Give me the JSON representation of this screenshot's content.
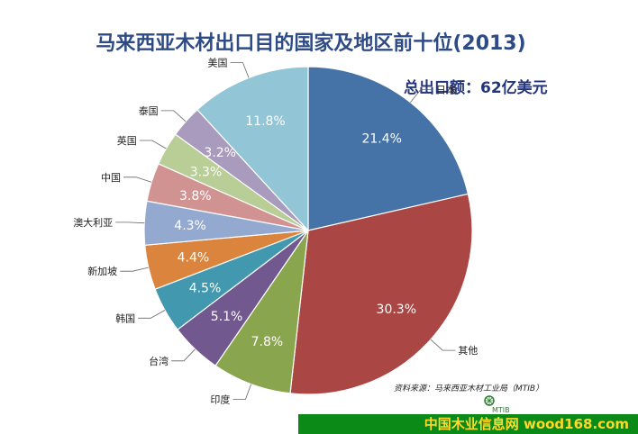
{
  "header": {
    "title": "马来西亚木材出口目的国家及地区前十位(2013)",
    "total": "总出口额：62亿美元"
  },
  "chart_data": {
    "type": "pie",
    "title": "马来西亚木材出口目的国家及地区前十位(2013)",
    "start_angle_deg": 0,
    "direction": "clockwise",
    "slices": [
      {
        "label": "日本",
        "value": 21.4,
        "value_label": "21.4%",
        "color": "#4572a7"
      },
      {
        "label": "其他",
        "value": 30.3,
        "value_label": "30.3%",
        "color": "#aa4643"
      },
      {
        "label": "印度",
        "value": 7.8,
        "value_label": "7.8%",
        "color": "#89a54e"
      },
      {
        "label": "台湾",
        "value": 5.1,
        "value_label": "5.1%",
        "color": "#71588f"
      },
      {
        "label": "韩国",
        "value": 4.5,
        "value_label": "4.5%",
        "color": "#4198af"
      },
      {
        "label": "新加坡",
        "value": 4.4,
        "value_label": "4.4%",
        "color": "#db843d"
      },
      {
        "label": "澳大利亚",
        "value": 4.3,
        "value_label": "4.3%",
        "color": "#93a9cf"
      },
      {
        "label": "中国",
        "value": 3.8,
        "value_label": "3.8%",
        "color": "#d19392"
      },
      {
        "label": "英国",
        "value": 3.3,
        "value_label": "3.3%",
        "color": "#b9cd96"
      },
      {
        "label": "泰国",
        "value": 3.2,
        "value_label": "3.2%",
        "color": "#a99bbd"
      },
      {
        "label": "美国",
        "value": 11.8,
        "value_label": "11.8%",
        "color": "#92c5d6"
      }
    ]
  },
  "footer": {
    "source": "资料来源：马来西亚木材工业局（MTIB）",
    "logo_text": "MTIB",
    "banner": "中国木业信息网 wood168.com"
  }
}
